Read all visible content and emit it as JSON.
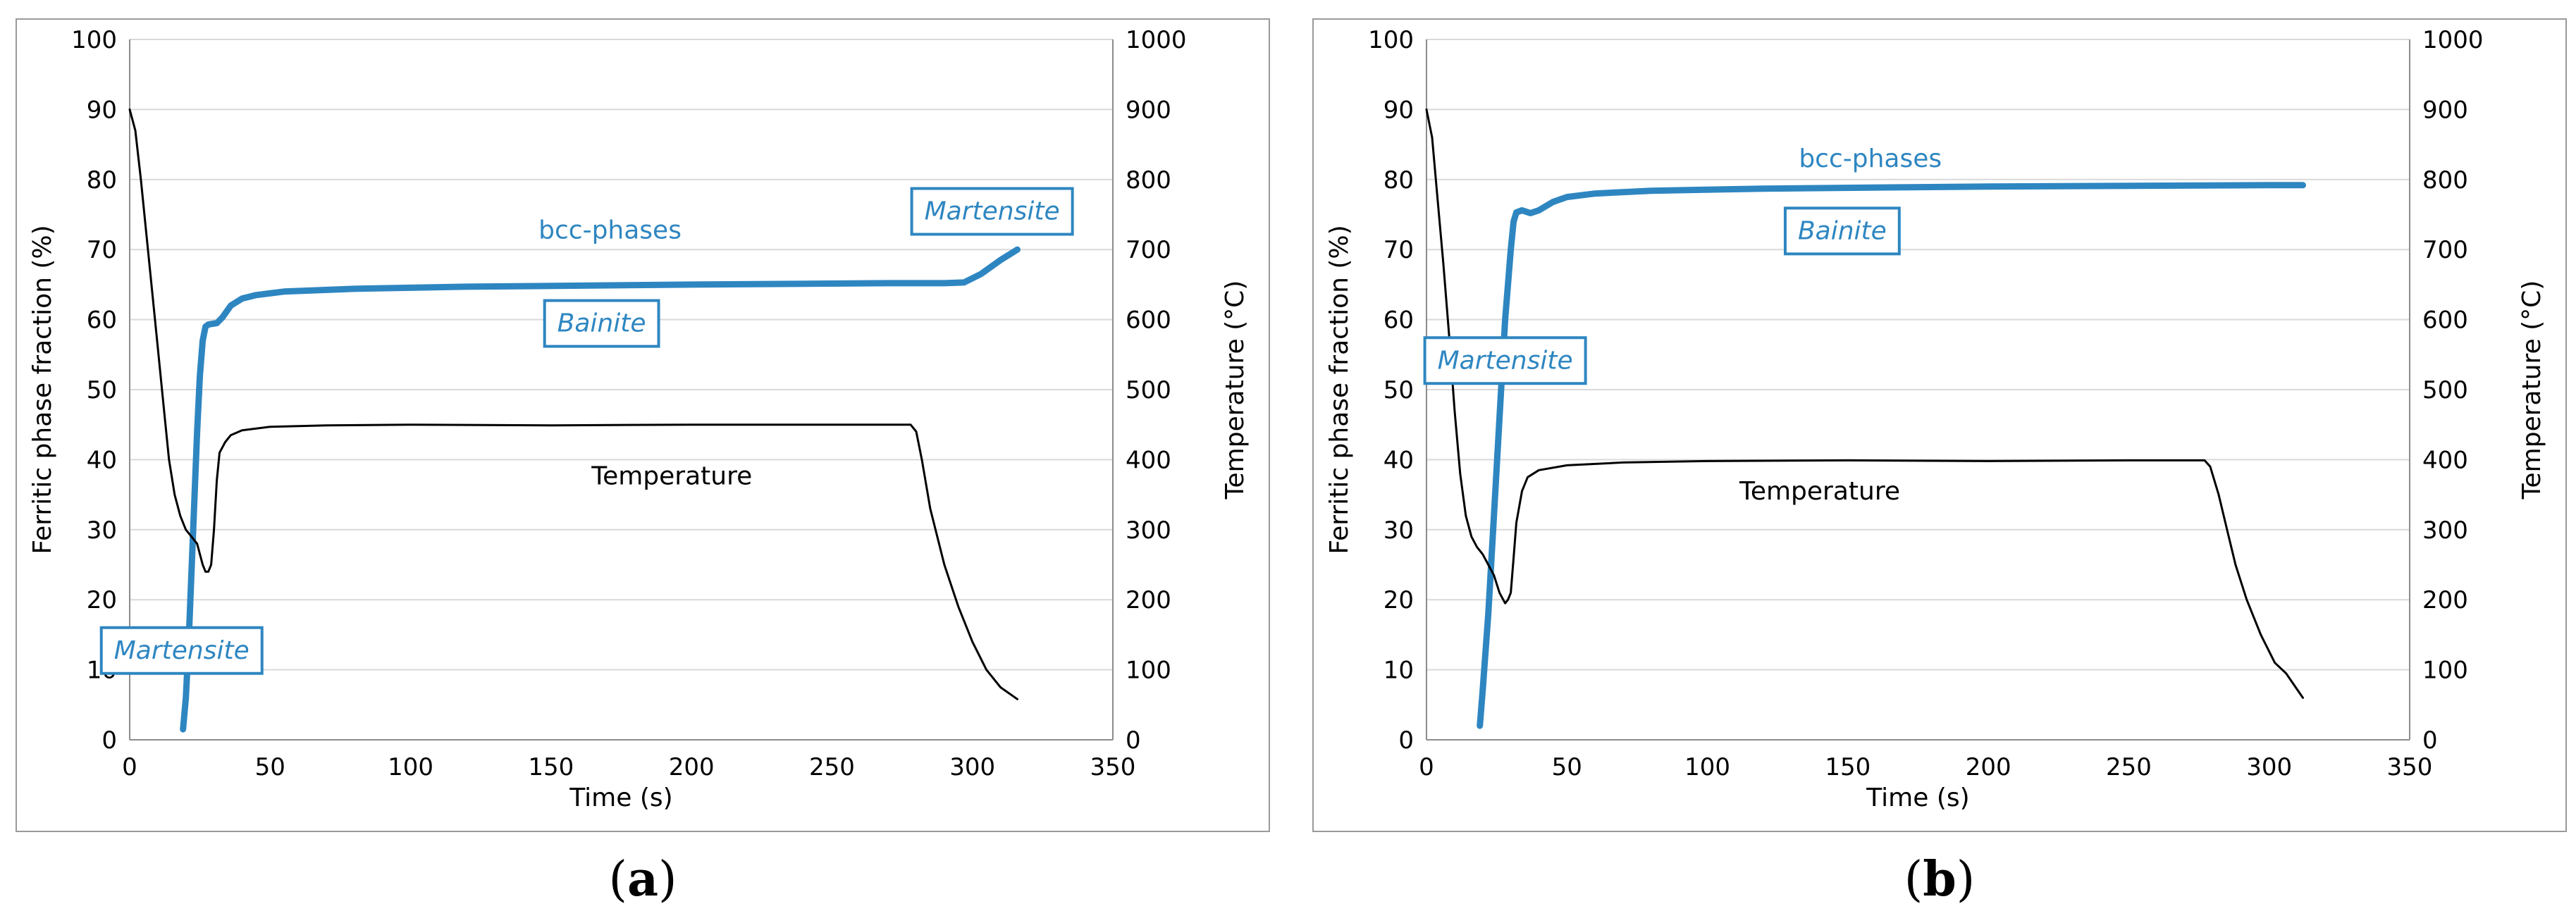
{
  "colors": {
    "bcc": "#2e86c1",
    "temperature": "#000000",
    "grid": "#d9d9d9",
    "frame": "#9a9a9a"
  },
  "charts": [
    {
      "id": "a",
      "caption": {
        "open": "(",
        "letter": "a",
        "close": ")"
      },
      "chart_data": {
        "type": "line",
        "xlabel": "Time (s)",
        "ylabel_left": "Ferritic phase fraction (%)",
        "ylabel_right": "Temperature (°C)",
        "xlim": [
          0,
          350
        ],
        "ylim_left": [
          0,
          100
        ],
        "ylim_right": [
          0,
          1000
        ],
        "x_ticks": [
          "0",
          "50",
          "100",
          "150",
          "200",
          "250",
          "300",
          "350"
        ],
        "y_ticks_left": [
          "0",
          "10",
          "20",
          "30",
          "40",
          "50",
          "60",
          "70",
          "80",
          "90",
          "100"
        ],
        "y_ticks_right": [
          "0",
          "100",
          "200",
          "300",
          "400",
          "500",
          "600",
          "700",
          "800",
          "900",
          "1000"
        ],
        "series": [
          {
            "name": "bcc-phases",
            "axis": "left",
            "points": [
              [
                19,
                1.5
              ],
              [
                20,
                6
              ],
              [
                21,
                14
              ],
              [
                22,
                24
              ],
              [
                23,
                34
              ],
              [
                24,
                44
              ],
              [
                25,
                52
              ],
              [
                26,
                57
              ],
              [
                27,
                59
              ],
              [
                28,
                59.3
              ],
              [
                31,
                59.5
              ],
              [
                33,
                60.3
              ],
              [
                36,
                62
              ],
              [
                40,
                63
              ],
              [
                45,
                63.5
              ],
              [
                55,
                64
              ],
              [
                80,
                64.4
              ],
              [
                120,
                64.7
              ],
              [
                200,
                65
              ],
              [
                270,
                65.2
              ],
              [
                290,
                65.2
              ],
              [
                297,
                65.3
              ],
              [
                303,
                66.5
              ],
              [
                310,
                68.5
              ],
              [
                316,
                70
              ]
            ]
          },
          {
            "name": "Temperature",
            "axis": "right",
            "points": [
              [
                0,
                900
              ],
              [
                2,
                870
              ],
              [
                4,
                800
              ],
              [
                6,
                720
              ],
              [
                8,
                640
              ],
              [
                10,
                560
              ],
              [
                12,
                480
              ],
              [
                14,
                400
              ],
              [
                16,
                350
              ],
              [
                18,
                320
              ],
              [
                20,
                300
              ],
              [
                22,
                290
              ],
              [
                24,
                280
              ],
              [
                26,
                250
              ],
              [
                27,
                240
              ],
              [
                28,
                240
              ],
              [
                29,
                250
              ],
              [
                30,
                300
              ],
              [
                31,
                370
              ],
              [
                32,
                410
              ],
              [
                34,
                425
              ],
              [
                36,
                435
              ],
              [
                40,
                442
              ],
              [
                50,
                447
              ],
              [
                70,
                449
              ],
              [
                100,
                450
              ],
              [
                150,
                449
              ],
              [
                200,
                450
              ],
              [
                250,
                450
              ],
              [
                278,
                450
              ],
              [
                280,
                440
              ],
              [
                282,
                400
              ],
              [
                285,
                330
              ],
              [
                290,
                250
              ],
              [
                295,
                190
              ],
              [
                300,
                140
              ],
              [
                305,
                100
              ],
              [
                310,
                75
              ],
              [
                316,
                58
              ]
            ]
          }
        ],
        "annotations": [
          {
            "text": "bcc-phases",
            "boxed": false,
            "italic": false,
            "color": "#2e86c1",
            "x": 171,
            "y": 72.8
          },
          {
            "text": "Bainite",
            "boxed": true,
            "italic": true,
            "color": "#2e86c1",
            "x": 168,
            "y": 59.5
          },
          {
            "text": "Martensite",
            "boxed": true,
            "italic": true,
            "color": "#2e86c1",
            "x": 307,
            "y": 75.5
          },
          {
            "text": "Martensite",
            "boxed": true,
            "italic": true,
            "color": "#2e86c1",
            "x": 18.5,
            "y": 12.8
          },
          {
            "text": "Temperature",
            "boxed": false,
            "italic": false,
            "color": "#000000",
            "x": 193,
            "y": 37.7
          }
        ]
      }
    },
    {
      "id": "b",
      "caption": {
        "open": "(",
        "letter": "b",
        "close": ")"
      },
      "chart_data": {
        "type": "line",
        "xlabel": "Time (s)",
        "ylabel_left": "Ferritic phase fraction (%)",
        "ylabel_right": "Temperature (°C)",
        "xlim": [
          0,
          350
        ],
        "ylim_left": [
          0,
          100
        ],
        "ylim_right": [
          0,
          1000
        ],
        "x_ticks": [
          "0",
          "50",
          "100",
          "150",
          "200",
          "250",
          "300",
          "350"
        ],
        "y_ticks_left": [
          "0",
          "10",
          "20",
          "30",
          "40",
          "50",
          "60",
          "70",
          "80",
          "90",
          "100"
        ],
        "y_ticks_right": [
          "0",
          "100",
          "200",
          "300",
          "400",
          "500",
          "600",
          "700",
          "800",
          "900",
          "1000"
        ],
        "series": [
          {
            "name": "bcc-phases",
            "axis": "left",
            "points": [
              [
                19,
                2
              ],
              [
                20,
                7
              ],
              [
                22,
                18
              ],
              [
                24,
                32
              ],
              [
                26,
                46
              ],
              [
                28,
                60
              ],
              [
                30,
                70
              ],
              [
                31,
                74
              ],
              [
                32,
                75.3
              ],
              [
                34,
                75.6
              ],
              [
                37,
                75.2
              ],
              [
                40,
                75.6
              ],
              [
                45,
                76.8
              ],
              [
                50,
                77.5
              ],
              [
                60,
                78
              ],
              [
                80,
                78.4
              ],
              [
                120,
                78.7
              ],
              [
                200,
                79
              ],
              [
                300,
                79.2
              ],
              [
                312,
                79.2
              ]
            ]
          },
          {
            "name": "Temperature",
            "axis": "right",
            "points": [
              [
                0,
                900
              ],
              [
                2,
                860
              ],
              [
                4,
                770
              ],
              [
                6,
                680
              ],
              [
                8,
                580
              ],
              [
                10,
                470
              ],
              [
                12,
                380
              ],
              [
                14,
                320
              ],
              [
                16,
                290
              ],
              [
                18,
                275
              ],
              [
                20,
                265
              ],
              [
                22,
                250
              ],
              [
                24,
                235
              ],
              [
                26,
                210
              ],
              [
                28,
                195
              ],
              [
                29,
                200
              ],
              [
                30,
                210
              ],
              [
                31,
                260
              ],
              [
                32,
                310
              ],
              [
                34,
                355
              ],
              [
                36,
                375
              ],
              [
                40,
                385
              ],
              [
                50,
                392
              ],
              [
                70,
                396
              ],
              [
                100,
                398
              ],
              [
                150,
                399
              ],
              [
                200,
                398
              ],
              [
                250,
                399
              ],
              [
                277,
                399
              ],
              [
                279,
                390
              ],
              [
                282,
                350
              ],
              [
                285,
                300
              ],
              [
                288,
                250
              ],
              [
                292,
                200
              ],
              [
                297,
                150
              ],
              [
                302,
                110
              ],
              [
                306,
                95
              ],
              [
                312,
                60
              ]
            ]
          }
        ],
        "annotations": [
          {
            "text": "bcc-phases",
            "boxed": false,
            "italic": false,
            "color": "#2e86c1",
            "x": 158,
            "y": 83
          },
          {
            "text": "Bainite",
            "boxed": true,
            "italic": true,
            "color": "#2e86c1",
            "x": 148,
            "y": 72.7
          },
          {
            "text": "Martensite",
            "boxed": true,
            "italic": true,
            "color": "#2e86c1",
            "x": 28,
            "y": 54.2
          },
          {
            "text": "Temperature",
            "boxed": false,
            "italic": false,
            "color": "#000000",
            "x": 140,
            "y": 35.5
          }
        ]
      }
    }
  ]
}
